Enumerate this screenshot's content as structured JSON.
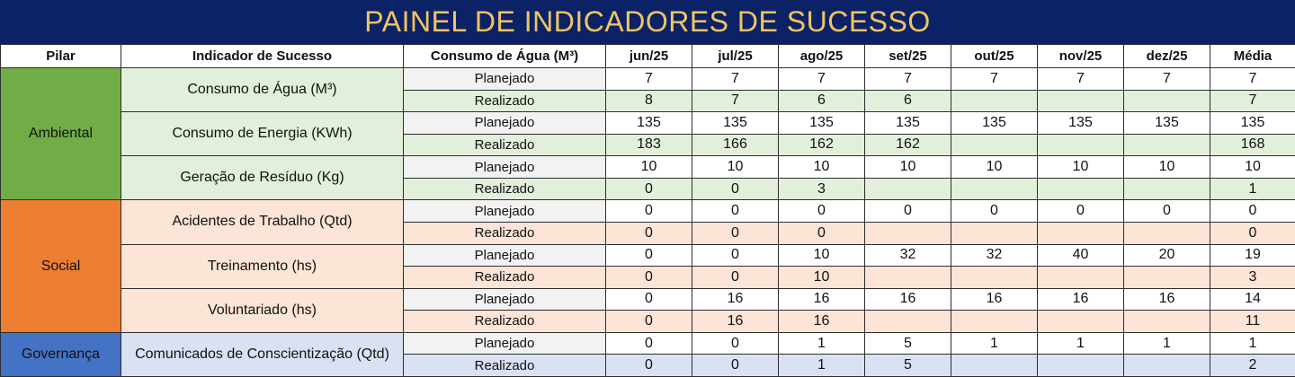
{
  "title": "PAINEL DE INDICADORES DE SUCESSO",
  "headers": [
    "Pilar",
    "Indicador de Sucesso",
    "Consumo de Água (M³)",
    "jun/25",
    "jul/25",
    "ago/25",
    "set/25",
    "out/25",
    "nov/25",
    "dez/25",
    "Média"
  ],
  "colors": {
    "title_bg": "#0b2366",
    "title_text": "#f2c464",
    "ambiental": "#70ad47",
    "ambiental_light": "#e2efda",
    "social": "#ed7d31",
    "social_light": "#fce4d6",
    "governanca": "#4472c4",
    "governanca_light": "#d9e1f2",
    "planejado_bg": "#f2f2f2"
  },
  "pillars": [
    {
      "name": "Ambiental",
      "key": "ambiental",
      "indicators": [
        {
          "name": "Consumo de Água (M³)",
          "rows": [
            {
              "type": "Planejado",
              "values": [
                "7",
                "7",
                "7",
                "7",
                "7",
                "7",
                "7",
                "7"
              ]
            },
            {
              "type": "Realizado",
              "values": [
                "8",
                "7",
                "6",
                "6",
                "",
                "",
                "",
                "7"
              ]
            }
          ]
        },
        {
          "name": "Consumo de Energia (KWh)",
          "rows": [
            {
              "type": "Planejado",
              "values": [
                "135",
                "135",
                "135",
                "135",
                "135",
                "135",
                "135",
                "135"
              ]
            },
            {
              "type": "Realizado",
              "values": [
                "183",
                "166",
                "162",
                "162",
                "",
                "",
                "",
                "168"
              ]
            }
          ]
        },
        {
          "name": "Geração de Resíduo (Kg)",
          "rows": [
            {
              "type": "Planejado",
              "values": [
                "10",
                "10",
                "10",
                "10",
                "10",
                "10",
                "10",
                "10"
              ]
            },
            {
              "type": "Realizado",
              "values": [
                "0",
                "0",
                "3",
                "",
                "",
                "",
                "",
                "1"
              ]
            }
          ]
        }
      ]
    },
    {
      "name": "Social",
      "key": "social",
      "indicators": [
        {
          "name": "Acidentes de Trabalho (Qtd)",
          "rows": [
            {
              "type": "Planejado",
              "values": [
                "0",
                "0",
                "0",
                "0",
                "0",
                "0",
                "0",
                "0"
              ]
            },
            {
              "type": "Realizado",
              "values": [
                "0",
                "0",
                "0",
                "",
                "",
                "",
                "",
                "0"
              ]
            }
          ]
        },
        {
          "name": "Treinamento (hs)",
          "rows": [
            {
              "type": "Planejado",
              "values": [
                "0",
                "0",
                "10",
                "32",
                "32",
                "40",
                "20",
                "19"
              ]
            },
            {
              "type": "Realizado",
              "values": [
                "0",
                "0",
                "10",
                "",
                "",
                "",
                "",
                "3"
              ]
            }
          ]
        },
        {
          "name": "Voluntariado (hs)",
          "rows": [
            {
              "type": "Planejado",
              "values": [
                "0",
                "16",
                "16",
                "16",
                "16",
                "16",
                "16",
                "14"
              ]
            },
            {
              "type": "Realizado",
              "values": [
                "0",
                "16",
                "16",
                "",
                "",
                "",
                "",
                "11"
              ]
            }
          ]
        }
      ]
    },
    {
      "name": "Governança",
      "key": "governanca",
      "indicators": [
        {
          "name": "Comunicados de Conscientização (Qtd)",
          "rows": [
            {
              "type": "Planejado",
              "values": [
                "0",
                "0",
                "1",
                "5",
                "1",
                "1",
                "1",
                "1"
              ]
            },
            {
              "type": "Realizado",
              "values": [
                "0",
                "0",
                "1",
                "5",
                "",
                "",
                "",
                "2"
              ]
            }
          ]
        }
      ]
    }
  ]
}
